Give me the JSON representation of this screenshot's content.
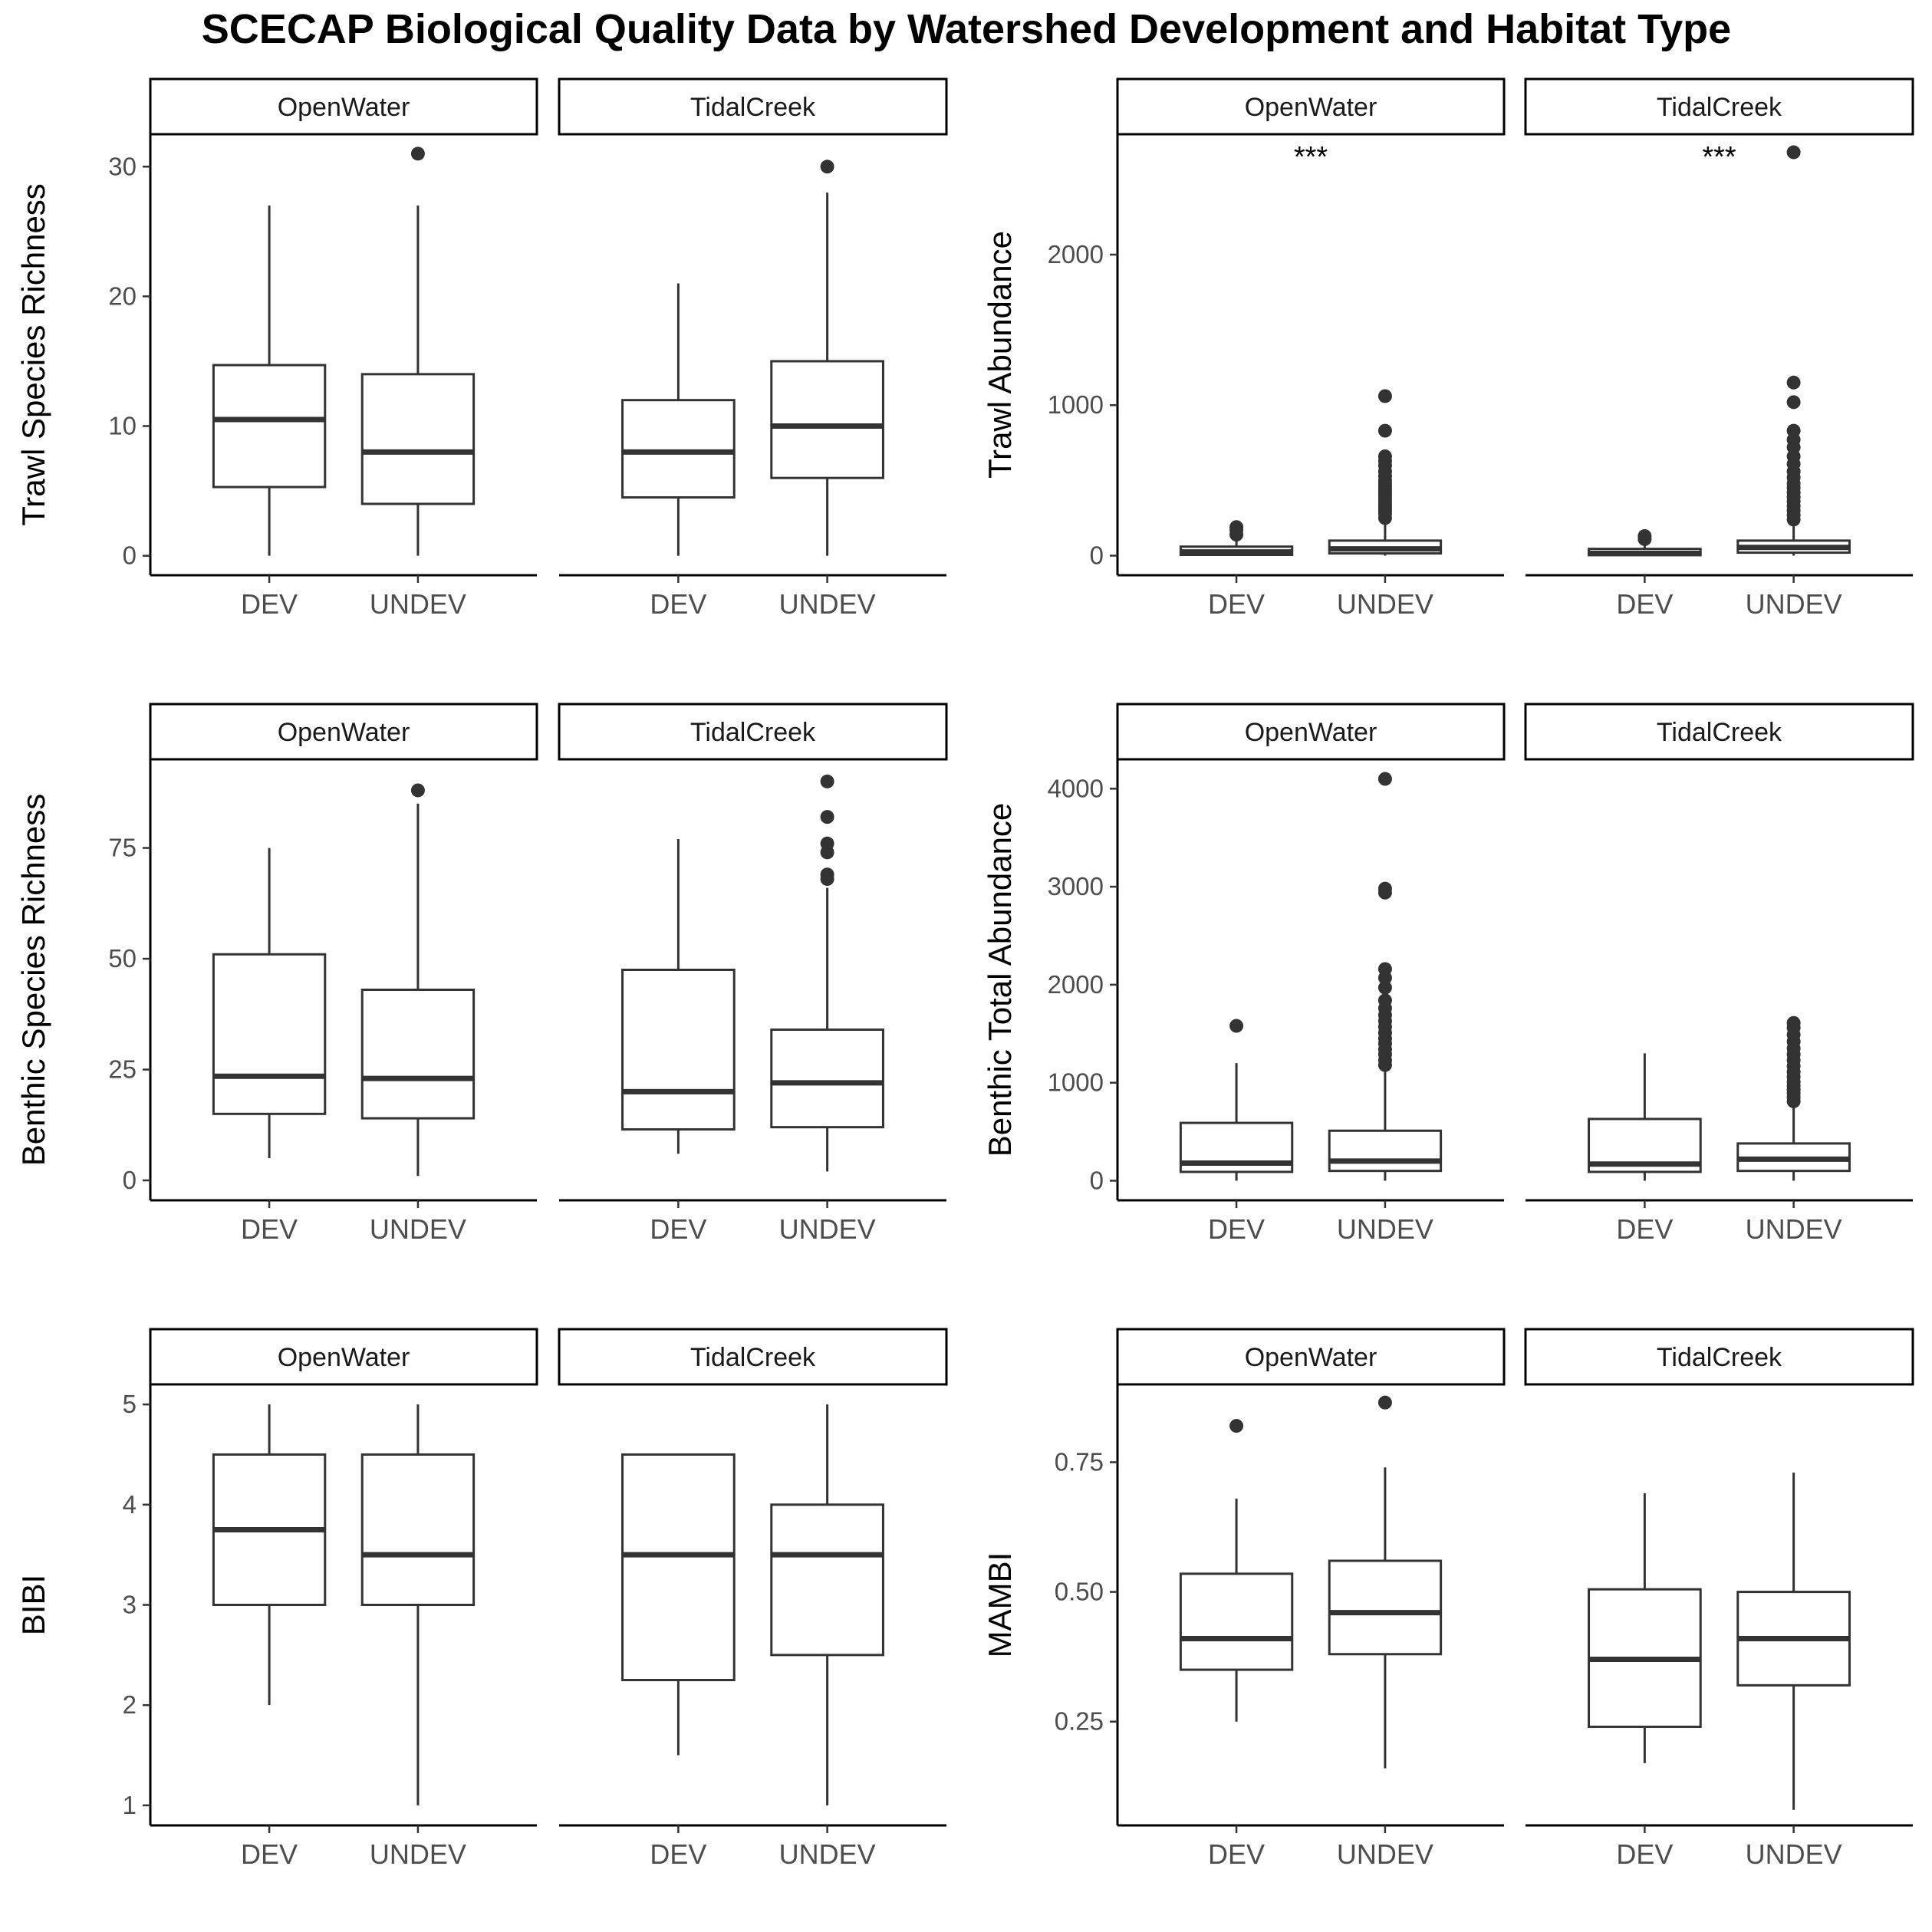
{
  "chart_data": {
    "title": "SCECAP Biological Quality Data by Watershed Development and Habitat Type",
    "type": "boxplot",
    "categories": [
      "DEV",
      "UNDEV"
    ],
    "facets": [
      "OpenWater",
      "TidalCreek"
    ],
    "panels": [
      {
        "ylabel": "Trawl Species Richness",
        "ylim": [
          -1.5,
          32.5
        ],
        "yticks": [
          0,
          10,
          20,
          30
        ],
        "tick_labels": [
          "0",
          "10",
          "20",
          "30"
        ],
        "facet_data": [
          {
            "facet": "OpenWater",
            "annotation": "",
            "boxes": [
              {
                "category": "DEV",
                "low": 0,
                "q1": 5.3,
                "median": 10.5,
                "q3": 14.7,
                "high": 27,
                "outliers": []
              },
              {
                "category": "UNDEV",
                "low": 0,
                "q1": 4,
                "median": 8,
                "q3": 14,
                "high": 27,
                "outliers": [
                  31
                ]
              }
            ]
          },
          {
            "facet": "TidalCreek",
            "annotation": "",
            "boxes": [
              {
                "category": "DEV",
                "low": 0,
                "q1": 4.5,
                "median": 8,
                "q3": 12,
                "high": 21,
                "outliers": []
              },
              {
                "category": "UNDEV",
                "low": 0,
                "q1": 6,
                "median": 10,
                "q3": 15,
                "high": 28,
                "outliers": [
                  30
                ]
              }
            ]
          }
        ]
      },
      {
        "ylabel": "Trawl Abundance",
        "ylim": [
          -130,
          2800
        ],
        "yticks": [
          0,
          1000,
          2000
        ],
        "tick_labels": [
          "0",
          "1000",
          "2000"
        ],
        "facet_data": [
          {
            "facet": "OpenWater",
            "annotation": "***",
            "boxes": [
              {
                "category": "DEV",
                "low": 0,
                "q1": 5,
                "median": 25,
                "q3": 60,
                "high": 110,
                "outliers": [
                  140,
                  170,
                  190
                ]
              },
              {
                "category": "UNDEV",
                "low": 0,
                "q1": 15,
                "median": 45,
                "q3": 100,
                "high": 230,
                "outliers": [
                  250,
                  280,
                  300,
                  320,
                  340,
                  360,
                  380,
                  400,
                  420,
                  440,
                  460,
                  480,
                  500,
                  530,
                  560,
                  600,
                  630,
                  660,
                  830,
                  1060
                ]
              }
            ]
          },
          {
            "facet": "TidalCreek",
            "annotation": "***",
            "boxes": [
              {
                "category": "DEV",
                "low": 0,
                "q1": 3,
                "median": 15,
                "q3": 45,
                "high": 90,
                "outliers": [
                  110,
                  130
                ]
              },
              {
                "category": "UNDEV",
                "low": 0,
                "q1": 20,
                "median": 55,
                "q3": 100,
                "high": 220,
                "outliers": [
                  240,
                  270,
                  300,
                  330,
                  360,
                  390,
                  420,
                  450,
                  480,
                  520,
                  560,
                  610,
                  660,
                  720,
                  770,
                  830,
                  1020,
                  1150,
                  2680
                ]
              }
            ]
          }
        ]
      },
      {
        "ylabel": "Benthic Species Richness",
        "ylim": [
          -4.5,
          95
        ],
        "yticks": [
          0,
          25,
          50,
          75
        ],
        "tick_labels": [
          "0",
          "25",
          "50",
          "75"
        ],
        "facet_data": [
          {
            "facet": "OpenWater",
            "annotation": "",
            "boxes": [
              {
                "category": "DEV",
                "low": 5,
                "q1": 15,
                "median": 23.5,
                "q3": 51,
                "high": 75,
                "outliers": []
              },
              {
                "category": "UNDEV",
                "low": 1,
                "q1": 14,
                "median": 23,
                "q3": 43,
                "high": 85,
                "outliers": [
                  88
                ]
              }
            ]
          },
          {
            "facet": "TidalCreek",
            "annotation": "",
            "boxes": [
              {
                "category": "DEV",
                "low": 6,
                "q1": 11.5,
                "median": 20,
                "q3": 47.5,
                "high": 77,
                "outliers": []
              },
              {
                "category": "UNDEV",
                "low": 2,
                "q1": 12,
                "median": 22,
                "q3": 34,
                "high": 66,
                "outliers": [
                  68,
                  69,
                  74,
                  76,
                  82,
                  90
                ]
              }
            ]
          }
        ]
      },
      {
        "ylabel": "Benthic Total Abundance",
        "ylim": [
          -200,
          4300
        ],
        "yticks": [
          0,
          1000,
          2000,
          3000,
          4000
        ],
        "tick_labels": [
          "0",
          "1000",
          "2000",
          "3000",
          "4000"
        ],
        "facet_data": [
          {
            "facet": "OpenWater",
            "annotation": "",
            "boxes": [
              {
                "category": "DEV",
                "low": 0,
                "q1": 90,
                "median": 180,
                "q3": 590,
                "high": 1200,
                "outliers": [
                  1580
                ]
              },
              {
                "category": "UNDEV",
                "low": 0,
                "q1": 100,
                "median": 200,
                "q3": 510,
                "high": 1150,
                "outliers": [
                  1180,
                  1230,
                  1290,
                  1340,
                  1400,
                  1450,
                  1510,
                  1570,
                  1630,
                  1690,
                  1760,
                  1840,
                  1970,
                  2070,
                  2160,
                  2940,
                  2980,
                  4100
                ]
              }
            ]
          },
          {
            "facet": "TidalCreek",
            "annotation": "",
            "boxes": [
              {
                "category": "DEV",
                "low": 0,
                "q1": 90,
                "median": 170,
                "q3": 630,
                "high": 1300,
                "outliers": []
              },
              {
                "category": "UNDEV",
                "low": 0,
                "q1": 100,
                "median": 220,
                "q3": 380,
                "high": 780,
                "outliers": [
                  810,
                  850,
                  890,
                  930,
                  970,
                  1010,
                  1060,
                  1110,
                  1170,
                  1230,
                  1290,
                  1350,
                  1420,
                  1490,
                  1560,
                  1610
                ]
              }
            ]
          }
        ]
      },
      {
        "ylabel": "BIBI",
        "ylim": [
          0.8,
          5.2
        ],
        "yticks": [
          1,
          2,
          3,
          4,
          5
        ],
        "tick_labels": [
          "1",
          "2",
          "3",
          "4",
          "5"
        ],
        "facet_data": [
          {
            "facet": "OpenWater",
            "annotation": "",
            "boxes": [
              {
                "category": "DEV",
                "low": 2,
                "q1": 3,
                "median": 3.75,
                "q3": 4.5,
                "high": 5,
                "outliers": []
              },
              {
                "category": "UNDEV",
                "low": 1,
                "q1": 3,
                "median": 3.5,
                "q3": 4.5,
                "high": 5,
                "outliers": []
              }
            ]
          },
          {
            "facet": "TidalCreek",
            "annotation": "",
            "boxes": [
              {
                "category": "DEV",
                "low": 1.5,
                "q1": 2.25,
                "median": 3.5,
                "q3": 4.5,
                "high": 4.5,
                "outliers": []
              },
              {
                "category": "UNDEV",
                "low": 1,
                "q1": 2.5,
                "median": 3.5,
                "q3": 4,
                "high": 5,
                "outliers": []
              }
            ]
          }
        ]
      },
      {
        "ylabel": "MAMBI",
        "ylim": [
          0.05,
          0.9
        ],
        "yticks": [
          0.25,
          0.5,
          0.75
        ],
        "tick_labels": [
          "0.25",
          "0.50",
          "0.75"
        ],
        "facet_data": [
          {
            "facet": "OpenWater",
            "annotation": "",
            "boxes": [
              {
                "category": "DEV",
                "low": 0.25,
                "q1": 0.35,
                "median": 0.41,
                "q3": 0.535,
                "high": 0.68,
                "outliers": [
                  0.82
                ]
              },
              {
                "category": "UNDEV",
                "low": 0.16,
                "q1": 0.38,
                "median": 0.46,
                "q3": 0.56,
                "high": 0.74,
                "outliers": [
                  0.865
                ]
              }
            ]
          },
          {
            "facet": "TidalCreek",
            "annotation": "",
            "boxes": [
              {
                "category": "DEV",
                "low": 0.17,
                "q1": 0.24,
                "median": 0.37,
                "q3": 0.505,
                "high": 0.69,
                "outliers": []
              },
              {
                "category": "UNDEV",
                "low": 0.08,
                "q1": 0.32,
                "median": 0.41,
                "q3": 0.5,
                "high": 0.73,
                "outliers": []
              }
            ]
          }
        ]
      }
    ]
  }
}
